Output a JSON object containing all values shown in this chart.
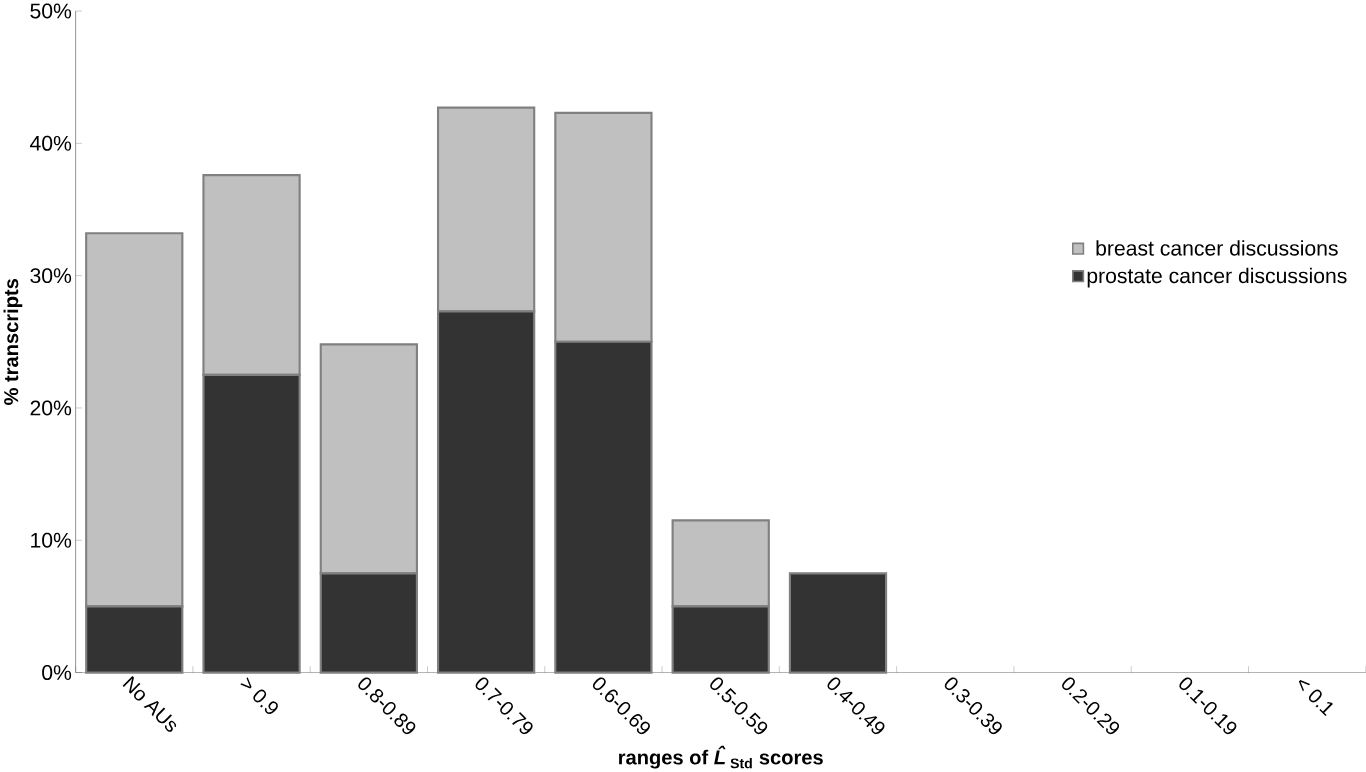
{
  "chart_data": {
    "type": "bar",
    "stacked": true,
    "xlabel": "ranges of *L̂*$_{Std}$ scores",
    "ylabel": "% transcripts",
    "categories": [
      "No AUs",
      "> 0.9",
      "0.8-0.89",
      "0.7-0.79",
      "0.6-0.69",
      "0.5-0.59",
      "0.4-0.49",
      "0.3-0.39",
      "0.2-0.29",
      "0.1-0.19",
      "< 0.1"
    ],
    "series": [
      {
        "name": "prostate cancer discussions",
        "color": "#333333",
        "values": [
          5,
          22.5,
          7.5,
          27.3,
          25,
          5,
          7.5,
          0,
          0,
          0,
          0
        ]
      },
      {
        "name": "breast cancer discussions",
        "color": "#c0c0c0",
        "values": [
          28.2,
          15.1,
          17.3,
          15.4,
          17.3,
          6.5,
          0,
          0,
          0,
          0,
          0
        ]
      }
    ],
    "ylim": [
      0,
      50
    ],
    "yticks": [
      {
        "value": 0,
        "label": "0%"
      },
      {
        "value": 10,
        "label": "10%"
      },
      {
        "value": 20,
        "label": "20%"
      },
      {
        "value": 30,
        "label": "30%"
      },
      {
        "value": 40,
        "label": "40%"
      },
      {
        "value": 50,
        "label": "50%"
      }
    ],
    "grid": false,
    "legend": "right"
  }
}
